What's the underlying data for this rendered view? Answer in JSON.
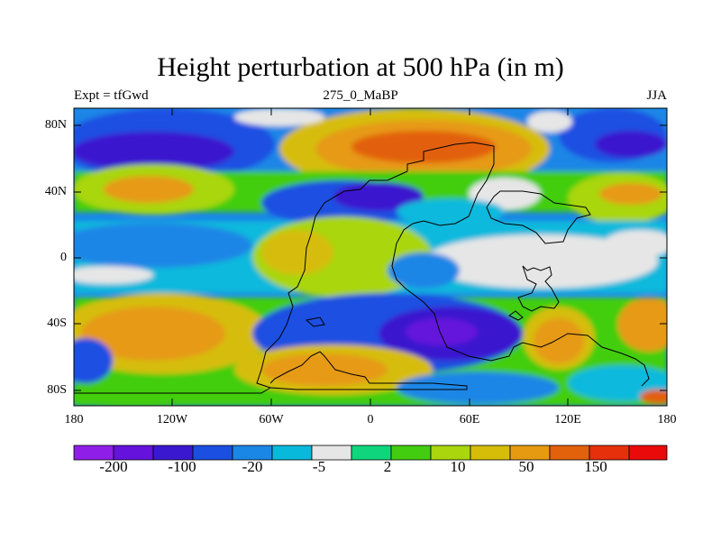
{
  "title": "Height perturbation at 500 hPa (in m)",
  "subtitle_left": "Expt = tfGwd",
  "subtitle_center": "275_0_MaBP",
  "subtitle_right": "JJA",
  "y_tick_labels": [
    "80N",
    "40N",
    "0",
    "40S",
    "80S"
  ],
  "x_tick_labels": [
    "180",
    "120W",
    "60W",
    "0",
    "60E",
    "120E",
    "180"
  ],
  "colorbar": {
    "colors": [
      "#8f1fe8",
      "#6512dc",
      "#3a18cf",
      "#1b4fe2",
      "#1a86e6",
      "#08b9dc",
      "#e6e6e6",
      "#0fd67d",
      "#43cd11",
      "#a9d60d",
      "#d6bd08",
      "#e69a12",
      "#e2610b",
      "#e62f0b",
      "#ea0a0a"
    ],
    "labels": [
      "-200",
      "-100",
      "-20",
      "-5",
      "2",
      "10",
      "50",
      "150"
    ]
  }
}
